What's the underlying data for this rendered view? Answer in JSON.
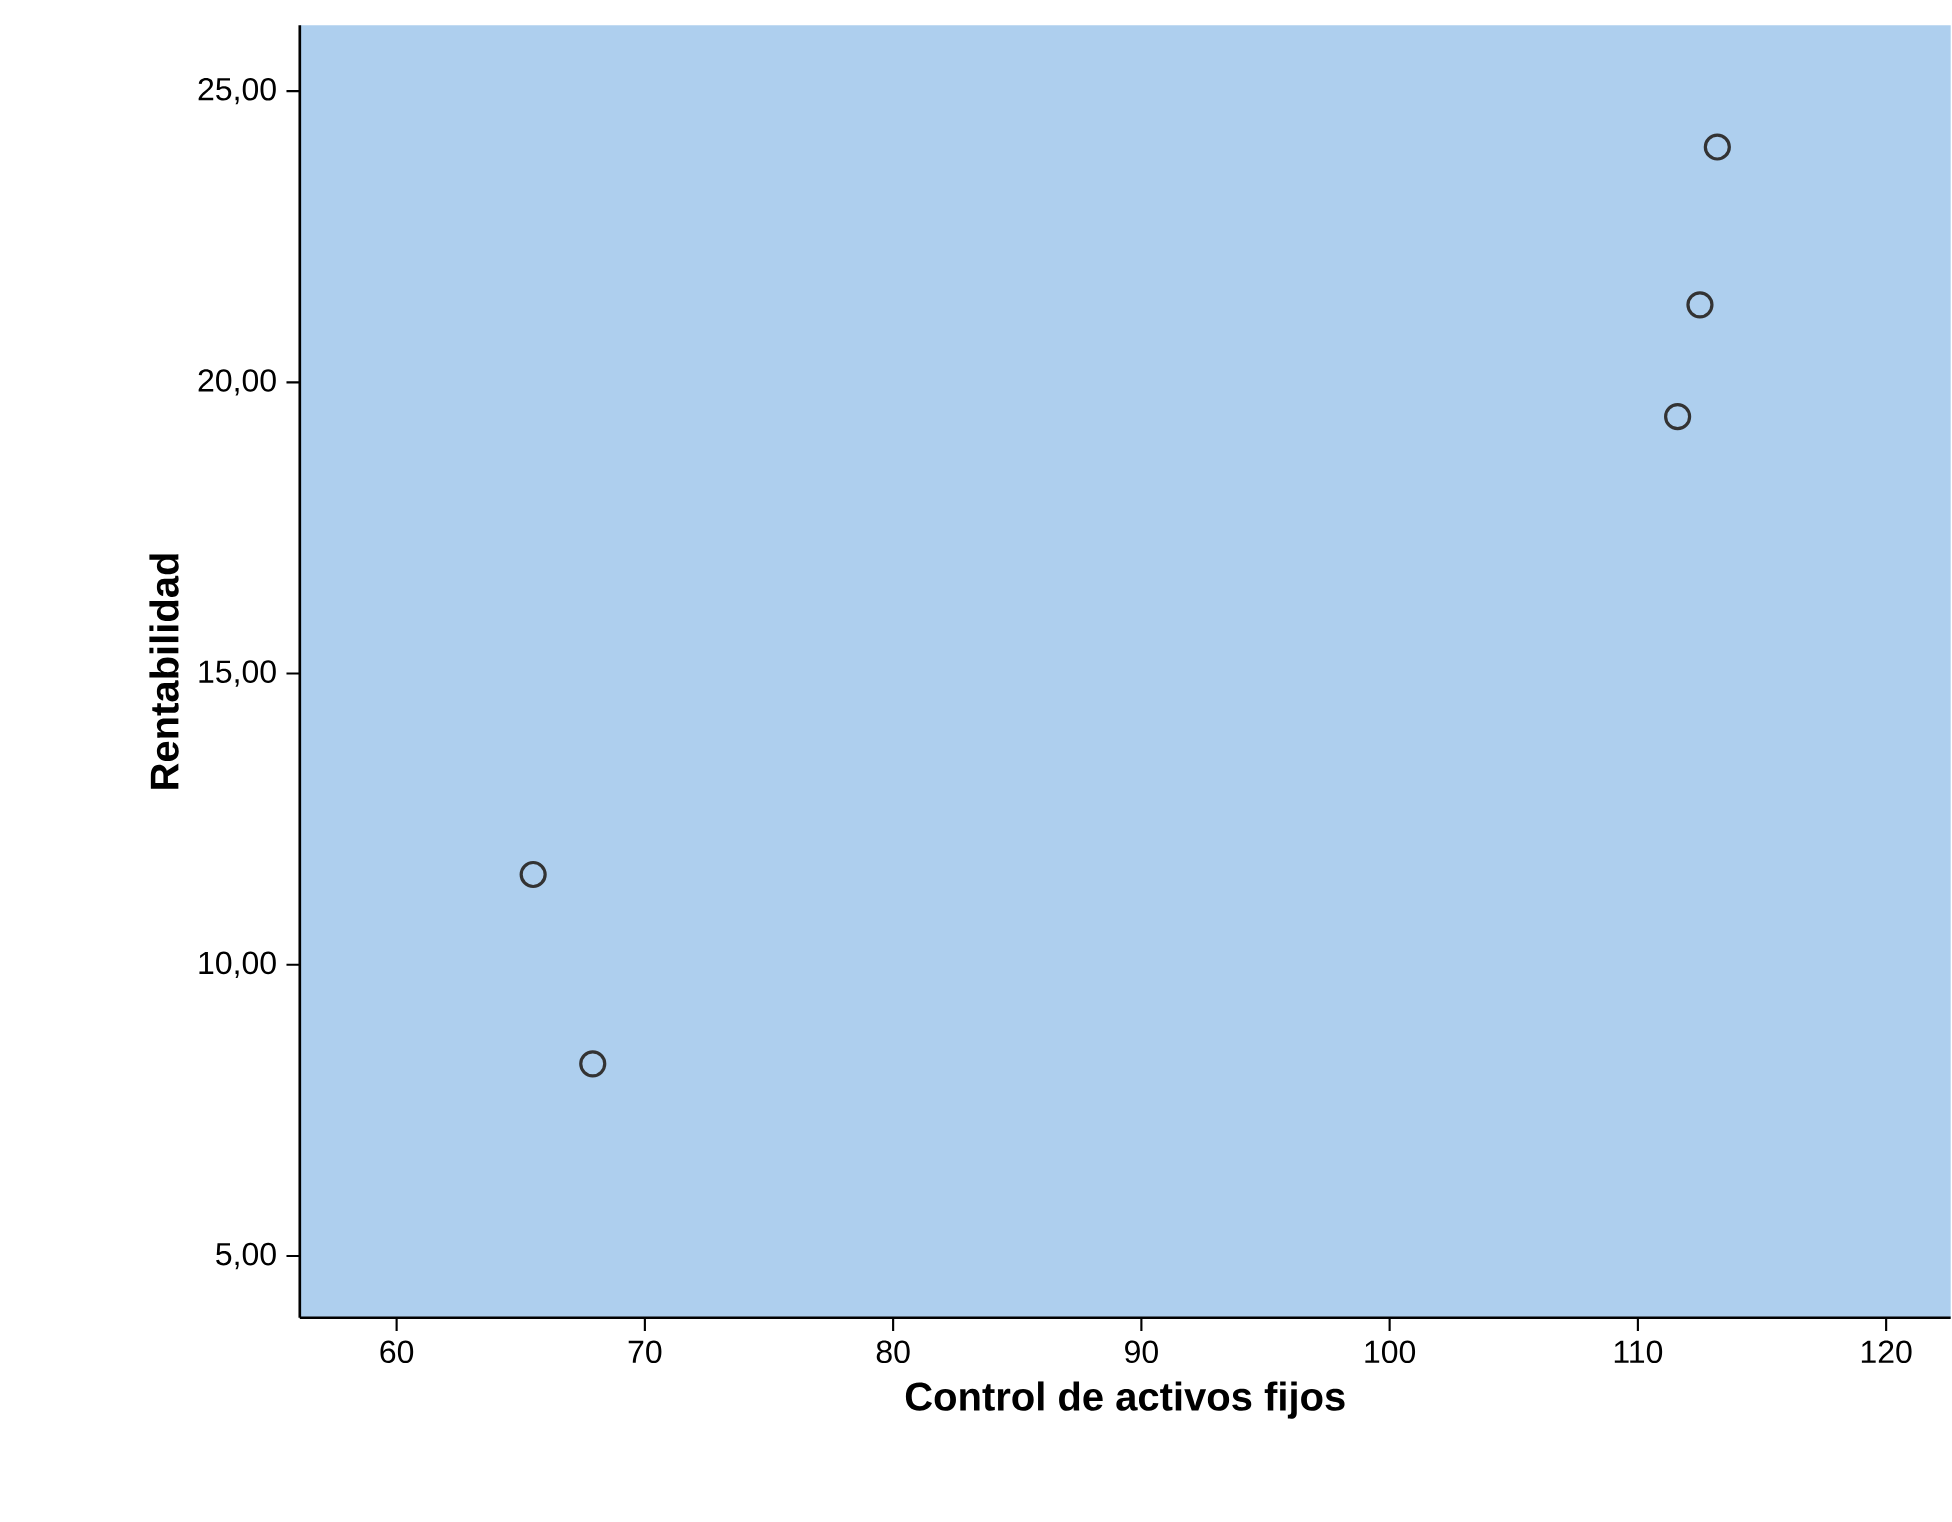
{
  "chart_data": {
    "type": "scatter",
    "xlabel": "Control de activos fijos",
    "ylabel": "Rentabilidad",
    "x": [
      65.5,
      67.9,
      113.2,
      112.5,
      111.6
    ],
    "values": [
      11.55,
      8.3,
      24.04,
      21.33,
      19.41
    ],
    "color": "#333333",
    "marker": "circle",
    "xlim": [
      56.1,
      122.6
    ],
    "ylim": [
      3.94,
      26.13
    ],
    "xticks": [
      60,
      70,
      80,
      90,
      100,
      110,
      120
    ],
    "yticks": [
      {
        "value": 5,
        "label": "5,00"
      },
      {
        "value": 10,
        "label": "10,00"
      },
      {
        "value": 15,
        "label": "15,00"
      },
      {
        "value": 20,
        "label": "20,00"
      },
      {
        "value": 25,
        "label": "25,00"
      }
    ]
  }
}
